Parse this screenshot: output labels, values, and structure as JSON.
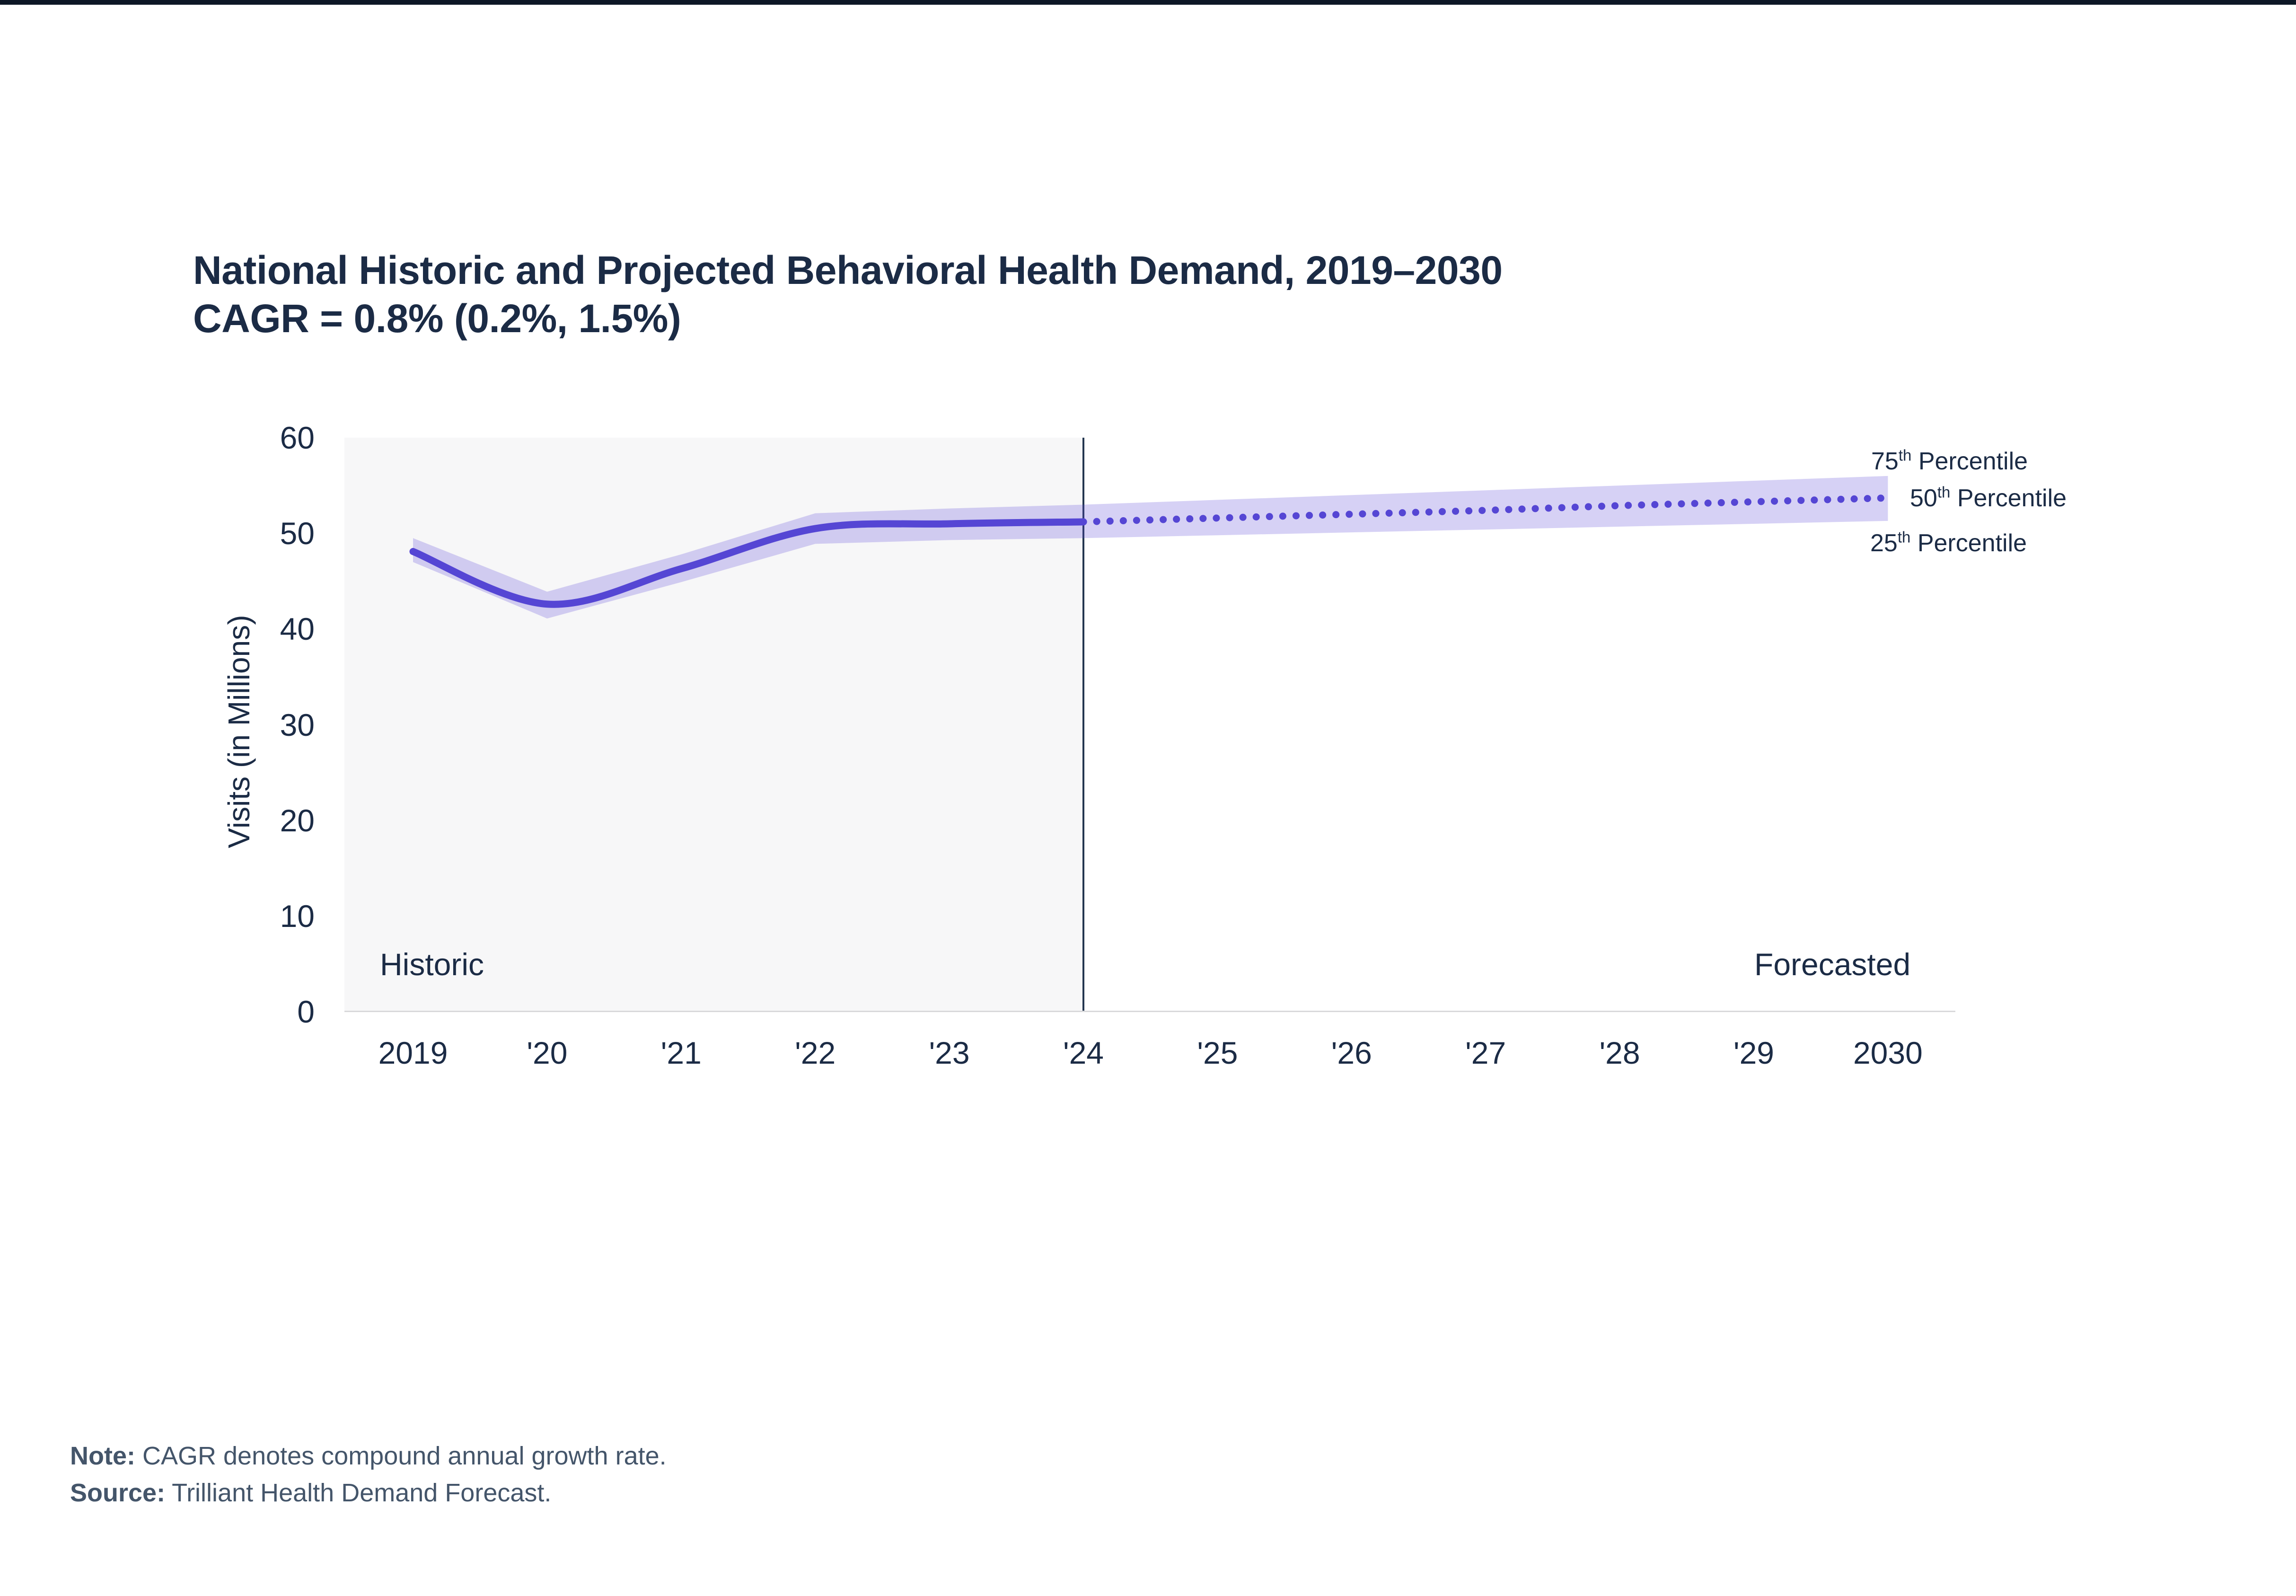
{
  "header": {
    "title_line1": "National Historic and Projected Behavioral Health Demand, 2019–2030",
    "title_line2": "CAGR = 0.8% (0.2%, 1.5%)"
  },
  "chart_data": {
    "type": "line",
    "title": "National Historic and Projected Behavioral Health Demand, 2019–2030",
    "subtitle": "CAGR = 0.8% (0.2%, 1.5%)",
    "xlabel": "",
    "ylabel": "Visits (in Millions)",
    "ylim": [
      0,
      60
    ],
    "grid": "off",
    "y_ticks": [
      60,
      50,
      40,
      30,
      20,
      10,
      0
    ],
    "x_tick_labels": [
      "2019",
      "'20",
      "'21",
      "'22",
      "'23",
      "'24",
      "'25",
      "'26",
      "'27",
      "'28",
      "'29",
      "2030"
    ],
    "years": [
      2019,
      2020,
      2021,
      2022,
      2023,
      2024,
      2025,
      2026,
      2027,
      2028,
      2029,
      2030
    ],
    "series": [
      {
        "name": "50th Percentile",
        "role": "median",
        "style": "solid 2019-2024, dotted 2024-2030",
        "values": [
          48.1,
          42.6,
          46.3,
          50.5,
          51.0,
          51.2,
          51.6,
          52.0,
          52.4,
          52.9,
          53.3,
          53.7
        ]
      },
      {
        "name": "75th Percentile",
        "role": "band_upper",
        "values": [
          49.5,
          43.9,
          47.8,
          52.1,
          52.6,
          53.0,
          53.5,
          54.0,
          54.5,
          55.0,
          55.5,
          56.0
        ]
      },
      {
        "name": "25th Percentile",
        "role": "band_lower",
        "values": [
          47.0,
          41.1,
          44.9,
          48.9,
          49.3,
          49.5,
          49.8,
          50.1,
          50.4,
          50.7,
          51.0,
          51.3
        ]
      }
    ],
    "historic_years": [
      2019,
      2024
    ],
    "forecast_years": [
      2024,
      2030
    ],
    "region_labels": {
      "historic": "Historic",
      "forecast": "Forecasted"
    },
    "percentile_labels": [
      {
        "num": "75",
        "sup": "th",
        "rest": " Percentile"
      },
      {
        "num": "50",
        "sup": "th",
        "rest": " Percentile"
      },
      {
        "num": "25",
        "sup": "th",
        "rest": " Percentile"
      }
    ]
  },
  "footer": {
    "note_label": "Note:",
    "note_text": " CAGR denotes compound annual growth rate.",
    "source_label": "Source:",
    "source_text": " Trilliant Health Demand Forecast."
  },
  "colors": {
    "topbar": "#0d1726",
    "title_text": "#1b2b45",
    "tick_text": "#1b2b45",
    "note_text": "#44556a",
    "line_purple": "#5546d4",
    "band_purple": "rgba(90,70,216,0.25)",
    "historic_bg": "#f7f7f8",
    "divider": "#243750",
    "axis_line": "#d9d9db"
  }
}
